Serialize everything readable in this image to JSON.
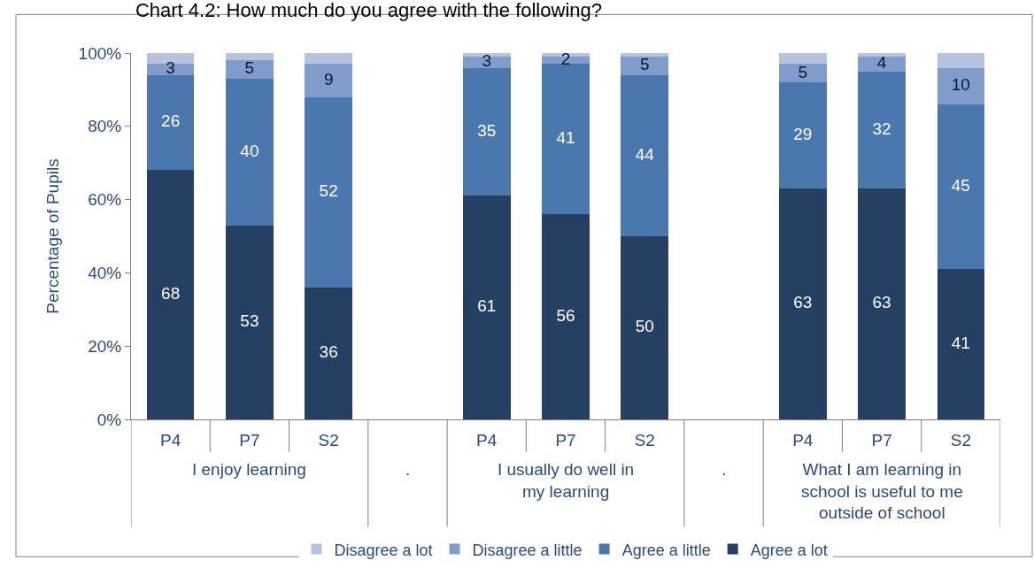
{
  "chart_data": {
    "type": "bar",
    "stacked": true,
    "title": "Chart 4.2: How much do you agree with the following?",
    "ylabel": "Percentage of Pupils",
    "categories": [
      "P4",
      "P7",
      "S2",
      null,
      "P4",
      "P7",
      "S2",
      null,
      "P4",
      "P7",
      "S2"
    ],
    "series": [
      {
        "name": "Agree a lot",
        "color": "#264064",
        "values": [
          68,
          53,
          36,
          null,
          61,
          56,
          50,
          null,
          63,
          63,
          41
        ],
        "value_labels": [
          "68",
          "53",
          "36",
          null,
          "61",
          "56",
          "50",
          null,
          "63",
          "63",
          "41"
        ]
      },
      {
        "name": "Agree a little",
        "color": "#4a78ae",
        "values": [
          26,
          40,
          52,
          null,
          35,
          41,
          44,
          null,
          29,
          32,
          45
        ],
        "value_labels": [
          "26",
          "40",
          "52",
          null,
          "35",
          "41",
          "44",
          null,
          "29",
          "32",
          "45"
        ]
      },
      {
        "name": "Disagree a little",
        "color": "#7f9ccb",
        "values": [
          3,
          5,
          9,
          null,
          3,
          2,
          5,
          null,
          5,
          4,
          10
        ],
        "value_labels": [
          "3",
          "5",
          "9",
          null,
          "3",
          "2",
          "5",
          null,
          "5",
          "4",
          "10"
        ]
      },
      {
        "name": "Disagree a lot",
        "color": "#b5c3df",
        "values": [
          3,
          2,
          3,
          null,
          1,
          1,
          1,
          null,
          3,
          1,
          4
        ]
      }
    ],
    "annotations": [
      "I enjoy learning",
      ".",
      "I usually do well in my learning",
      ".",
      "What I am learning in school is useful to me outside of school"
    ],
    "ylim": [
      0,
      100
    ],
    "yticks": [
      {
        "value": 0,
        "label": "0%"
      },
      {
        "value": 20,
        "label": "20%"
      },
      {
        "value": 40,
        "label": "40%"
      },
      {
        "value": 60,
        "label": "60%"
      },
      {
        "value": 80,
        "label": "80%"
      },
      {
        "value": 100,
        "label": "100%"
      }
    ],
    "legend": "bottom"
  }
}
